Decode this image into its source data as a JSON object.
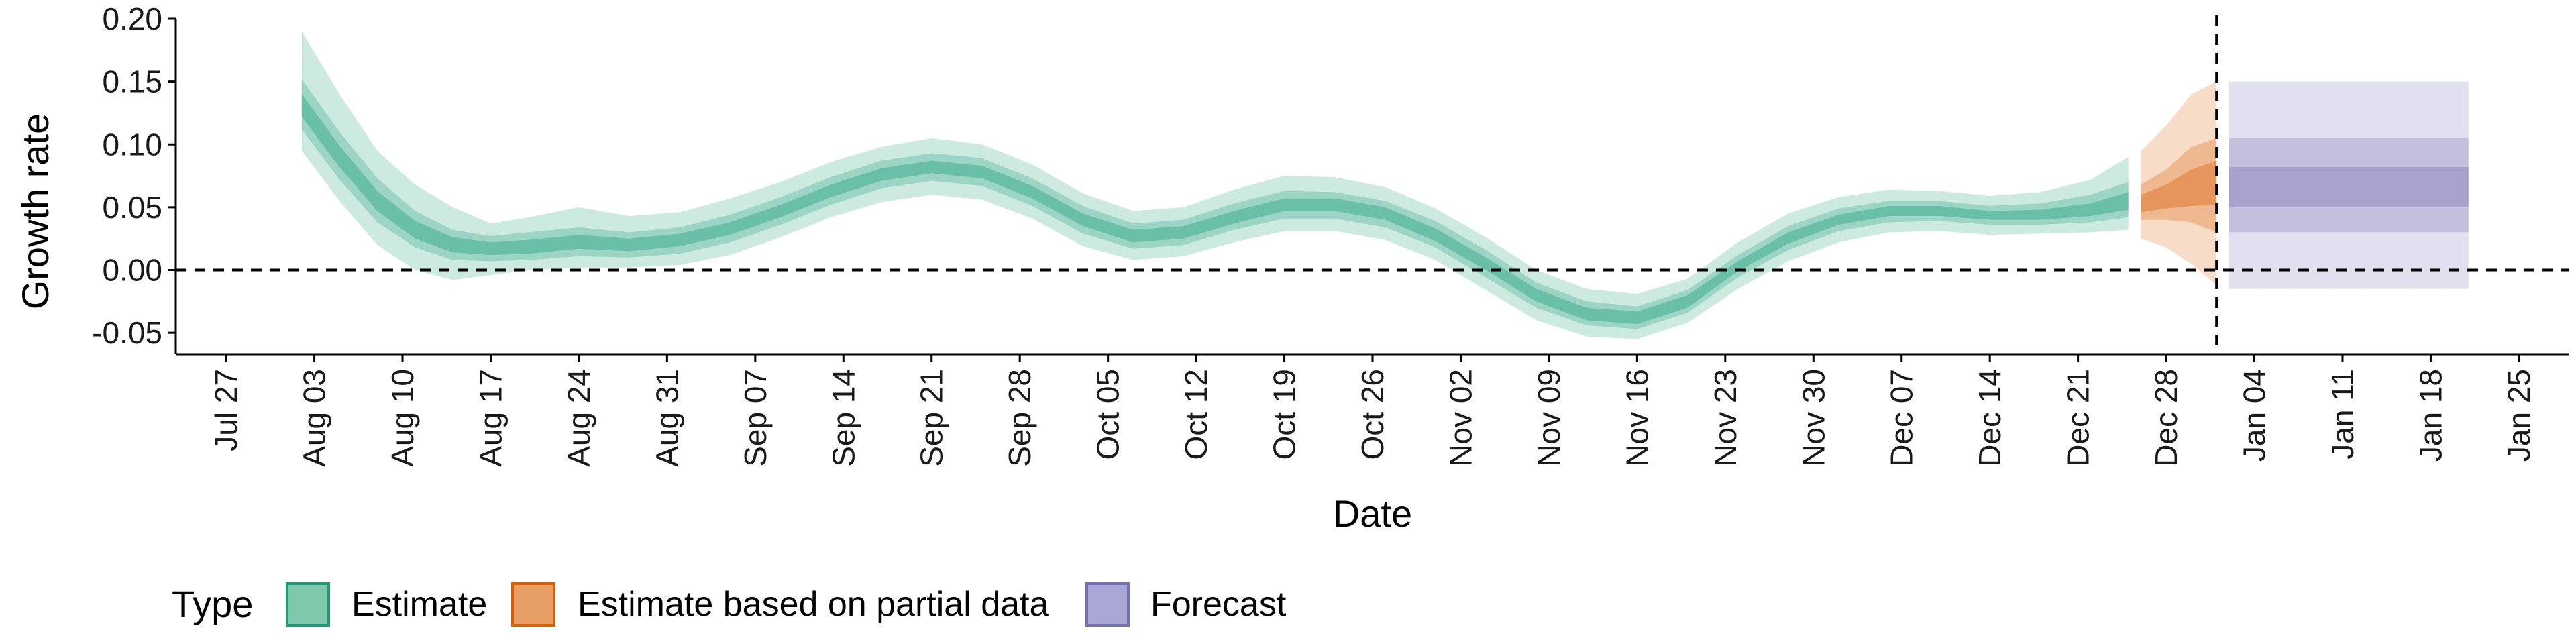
{
  "chart_data": {
    "type": "area",
    "xlabel": "Date",
    "ylabel": "Growth rate",
    "ylim": [
      -0.067,
      0.2
    ],
    "xlim": [
      "2020-07-23",
      "2021-01-29"
    ],
    "y_ticks": [
      "0.20",
      "0.15",
      "0.10",
      "0.05",
      "0.00",
      "-0.05"
    ],
    "y_tick_values": [
      0.2,
      0.15,
      0.1,
      0.05,
      0.0,
      -0.05
    ],
    "x_ticks": [
      "Jul 27",
      "Aug 03",
      "Aug 10",
      "Aug 17",
      "Aug 24",
      "Aug 31",
      "Sep 07",
      "Sep 14",
      "Sep 21",
      "Sep 28",
      "Oct 05",
      "Oct 12",
      "Oct 19",
      "Oct 26",
      "Nov 02",
      "Nov 09",
      "Nov 16",
      "Nov 23",
      "Nov 30",
      "Dec 07",
      "Dec 14",
      "Dec 21",
      "Dec 28",
      "Jan 04",
      "Jan 11",
      "Jan 18",
      "Jan 25"
    ],
    "x_tick_dates": [
      "2020-07-27",
      "2020-08-03",
      "2020-08-10",
      "2020-08-17",
      "2020-08-24",
      "2020-08-31",
      "2020-09-07",
      "2020-09-14",
      "2020-09-21",
      "2020-09-28",
      "2020-10-05",
      "2020-10-12",
      "2020-10-19",
      "2020-10-26",
      "2020-11-02",
      "2020-11-09",
      "2020-11-16",
      "2020-11-23",
      "2020-11-30",
      "2020-12-07",
      "2020-12-14",
      "2020-12-21",
      "2020-12-28",
      "2021-01-04",
      "2021-01-11",
      "2021-01-18",
      "2021-01-25"
    ],
    "reference_lines": {
      "horizontal_y": 0.0,
      "vertical_date": "2021-01-01"
    },
    "grid": false,
    "legend_position": "bottom",
    "legend_title": "Type",
    "series": [
      {
        "name": "Estimate",
        "color": "#1b9e77",
        "bands": [
          "90%",
          "50%",
          "20%"
        ],
        "points": [
          {
            "date": "2020-08-02",
            "median": 0.13,
            "lo90": 0.095,
            "hi90": 0.19,
            "lo50": 0.112,
            "hi50": 0.152,
            "lo20": 0.122,
            "hi20": 0.14
          },
          {
            "date": "2020-08-05",
            "median": 0.09,
            "lo90": 0.055,
            "hi90": 0.14,
            "lo50": 0.072,
            "hi50": 0.11,
            "lo20": 0.082,
            "hi20": 0.099
          },
          {
            "date": "2020-08-08",
            "median": 0.055,
            "lo90": 0.02,
            "hi90": 0.095,
            "lo50": 0.038,
            "hi50": 0.073,
            "lo20": 0.047,
            "hi20": 0.063
          },
          {
            "date": "2020-08-11",
            "median": 0.032,
            "lo90": 0.0,
            "hi90": 0.068,
            "lo50": 0.018,
            "hi50": 0.047,
            "lo20": 0.025,
            "hi20": 0.039
          },
          {
            "date": "2020-08-14",
            "median": 0.02,
            "lo90": -0.008,
            "hi90": 0.05,
            "lo50": 0.008,
            "hi50": 0.032,
            "lo20": 0.014,
            "hi20": 0.026
          },
          {
            "date": "2020-08-17",
            "median": 0.017,
            "lo90": -0.004,
            "hi90": 0.037,
            "lo50": 0.007,
            "hi50": 0.027,
            "lo20": 0.012,
            "hi20": 0.022
          },
          {
            "date": "2020-08-20",
            "median": 0.018,
            "lo90": 0.0,
            "hi90": 0.042,
            "lo50": 0.008,
            "hi50": 0.03,
            "lo20": 0.013,
            "hi20": 0.024
          },
          {
            "date": "2020-08-24",
            "median": 0.022,
            "lo90": 0.002,
            "hi90": 0.05,
            "lo50": 0.011,
            "hi50": 0.034,
            "lo20": 0.017,
            "hi20": 0.028
          },
          {
            "date": "2020-08-28",
            "median": 0.02,
            "lo90": 0.002,
            "hi90": 0.043,
            "lo50": 0.01,
            "hi50": 0.03,
            "lo20": 0.015,
            "hi20": 0.025
          },
          {
            "date": "2020-09-01",
            "median": 0.024,
            "lo90": 0.004,
            "hi90": 0.046,
            "lo50": 0.013,
            "hi50": 0.034,
            "lo20": 0.019,
            "hi20": 0.029
          },
          {
            "date": "2020-09-05",
            "median": 0.033,
            "lo90": 0.012,
            "hi90": 0.057,
            "lo50": 0.022,
            "hi50": 0.044,
            "lo20": 0.028,
            "hi20": 0.038
          },
          {
            "date": "2020-09-09",
            "median": 0.047,
            "lo90": 0.026,
            "hi90": 0.07,
            "lo50": 0.036,
            "hi50": 0.058,
            "lo20": 0.042,
            "hi20": 0.052
          },
          {
            "date": "2020-09-13",
            "median": 0.063,
            "lo90": 0.042,
            "hi90": 0.086,
            "lo50": 0.052,
            "hi50": 0.074,
            "lo20": 0.058,
            "hi20": 0.068
          },
          {
            "date": "2020-09-17",
            "median": 0.076,
            "lo90": 0.054,
            "hi90": 0.098,
            "lo50": 0.065,
            "hi50": 0.087,
            "lo20": 0.071,
            "hi20": 0.081
          },
          {
            "date": "2020-09-21",
            "median": 0.082,
            "lo90": 0.06,
            "hi90": 0.105,
            "lo50": 0.071,
            "hi50": 0.093,
            "lo20": 0.077,
            "hi20": 0.087
          },
          {
            "date": "2020-09-25",
            "median": 0.078,
            "lo90": 0.056,
            "hi90": 0.1,
            "lo50": 0.067,
            "hi50": 0.089,
            "lo20": 0.073,
            "hi20": 0.083
          },
          {
            "date": "2020-09-29",
            "median": 0.062,
            "lo90": 0.041,
            "hi90": 0.084,
            "lo50": 0.051,
            "hi50": 0.073,
            "lo20": 0.057,
            "hi20": 0.067
          },
          {
            "date": "2020-10-03",
            "median": 0.04,
            "lo90": 0.019,
            "hi90": 0.061,
            "lo50": 0.029,
            "hi50": 0.051,
            "lo20": 0.035,
            "hi20": 0.045
          },
          {
            "date": "2020-10-07",
            "median": 0.027,
            "lo90": 0.008,
            "hi90": 0.047,
            "lo50": 0.017,
            "hi50": 0.037,
            "lo20": 0.022,
            "hi20": 0.032
          },
          {
            "date": "2020-10-11",
            "median": 0.03,
            "lo90": 0.011,
            "hi90": 0.05,
            "lo50": 0.02,
            "hi50": 0.04,
            "lo20": 0.025,
            "hi20": 0.035
          },
          {
            "date": "2020-10-15",
            "median": 0.042,
            "lo90": 0.022,
            "hi90": 0.064,
            "lo50": 0.032,
            "hi50": 0.053,
            "lo20": 0.037,
            "hi20": 0.047
          },
          {
            "date": "2020-10-19",
            "median": 0.052,
            "lo90": 0.031,
            "hi90": 0.075,
            "lo50": 0.041,
            "hi50": 0.063,
            "lo20": 0.047,
            "hi20": 0.057
          },
          {
            "date": "2020-10-23",
            "median": 0.052,
            "lo90": 0.031,
            "hi90": 0.074,
            "lo50": 0.041,
            "hi50": 0.062,
            "lo20": 0.047,
            "hi20": 0.057
          },
          {
            "date": "2020-10-27",
            "median": 0.045,
            "lo90": 0.024,
            "hi90": 0.066,
            "lo50": 0.034,
            "hi50": 0.055,
            "lo20": 0.04,
            "hi20": 0.05
          },
          {
            "date": "2020-10-31",
            "median": 0.028,
            "lo90": 0.008,
            "hi90": 0.049,
            "lo50": 0.018,
            "hi50": 0.039,
            "lo20": 0.023,
            "hi20": 0.033
          },
          {
            "date": "2020-11-04",
            "median": 0.005,
            "lo90": -0.016,
            "hi90": 0.026,
            "lo50": -0.006,
            "hi50": 0.016,
            "lo20": 0.0,
            "hi20": 0.01
          },
          {
            "date": "2020-11-08",
            "median": -0.02,
            "lo90": -0.04,
            "hi90": 0.0,
            "lo50": -0.03,
            "hi50": -0.01,
            "lo20": -0.025,
            "hi20": -0.015
          },
          {
            "date": "2020-11-12",
            "median": -0.035,
            "lo90": -0.053,
            "hi90": -0.015,
            "lo50": -0.044,
            "hi50": -0.025,
            "lo20": -0.04,
            "hi20": -0.03
          },
          {
            "date": "2020-11-16",
            "median": -0.038,
            "lo90": -0.055,
            "hi90": -0.019,
            "lo50": -0.047,
            "hi50": -0.029,
            "lo20": -0.043,
            "hi20": -0.033
          },
          {
            "date": "2020-11-20",
            "median": -0.025,
            "lo90": -0.042,
            "hi90": -0.007,
            "lo50": -0.034,
            "hi50": -0.016,
            "lo20": -0.03,
            "hi20": -0.02
          },
          {
            "date": "2020-11-24",
            "median": 0.003,
            "lo90": -0.015,
            "hi90": 0.022,
            "lo50": -0.006,
            "hi50": 0.012,
            "lo20": -0.001,
            "hi20": 0.007
          },
          {
            "date": "2020-11-28",
            "median": 0.025,
            "lo90": 0.007,
            "hi90": 0.045,
            "lo50": 0.016,
            "hi50": 0.035,
            "lo20": 0.021,
            "hi20": 0.03
          },
          {
            "date": "2020-12-02",
            "median": 0.04,
            "lo90": 0.022,
            "hi90": 0.058,
            "lo50": 0.031,
            "hi50": 0.049,
            "lo20": 0.036,
            "hi20": 0.044
          },
          {
            "date": "2020-12-06",
            "median": 0.047,
            "lo90": 0.03,
            "hi90": 0.064,
            "lo50": 0.038,
            "hi50": 0.055,
            "lo20": 0.043,
            "hi20": 0.051
          },
          {
            "date": "2020-12-10",
            "median": 0.047,
            "lo90": 0.031,
            "hi90": 0.063,
            "lo50": 0.039,
            "hi50": 0.055,
            "lo20": 0.043,
            "hi20": 0.051
          },
          {
            "date": "2020-12-14",
            "median": 0.043,
            "lo90": 0.028,
            "hi90": 0.059,
            "lo50": 0.036,
            "hi50": 0.051,
            "lo20": 0.04,
            "hi20": 0.047
          },
          {
            "date": "2020-12-18",
            "median": 0.044,
            "lo90": 0.029,
            "hi90": 0.062,
            "lo50": 0.036,
            "hi50": 0.053,
            "lo20": 0.04,
            "hi20": 0.048
          },
          {
            "date": "2020-12-22",
            "median": 0.048,
            "lo90": 0.03,
            "hi90": 0.072,
            "lo50": 0.038,
            "hi50": 0.06,
            "lo20": 0.043,
            "hi20": 0.053
          },
          {
            "date": "2020-12-25",
            "median": 0.055,
            "lo90": 0.032,
            "hi90": 0.09,
            "lo50": 0.042,
            "hi50": 0.07,
            "lo20": 0.048,
            "hi20": 0.062
          }
        ]
      },
      {
        "name": "Estimate based on partial data",
        "color": "#d95f02",
        "bands": [
          "90%",
          "50%",
          "20%"
        ],
        "points": [
          {
            "date": "2020-12-26",
            "median": 0.052,
            "lo90": 0.025,
            "hi90": 0.095,
            "lo50": 0.04,
            "hi50": 0.068,
            "lo20": 0.046,
            "hi20": 0.06
          },
          {
            "date": "2020-12-28",
            "median": 0.058,
            "lo90": 0.018,
            "hi90": 0.115,
            "lo50": 0.04,
            "hi50": 0.08,
            "lo20": 0.049,
            "hi20": 0.068
          },
          {
            "date": "2020-12-30",
            "median": 0.065,
            "lo90": 0.005,
            "hi90": 0.14,
            "lo50": 0.038,
            "hi50": 0.098,
            "lo20": 0.051,
            "hi20": 0.08
          },
          {
            "date": "2021-01-01",
            "median": 0.07,
            "lo90": -0.012,
            "hi90": 0.15,
            "lo50": 0.03,
            "hi50": 0.105,
            "lo20": 0.052,
            "hi20": 0.087
          }
        ]
      },
      {
        "name": "Forecast",
        "color": "#7570b3",
        "bands": [
          "90%",
          "50%",
          "20%"
        ],
        "points": [
          {
            "date": "2021-01-02",
            "lo90": -0.015,
            "hi90": 0.15,
            "lo50": 0.03,
            "hi50": 0.105,
            "lo20": 0.05,
            "hi20": 0.082
          },
          {
            "date": "2021-01-21",
            "lo90": -0.015,
            "hi90": 0.15,
            "lo50": 0.03,
            "hi50": 0.105,
            "lo20": 0.05,
            "hi20": 0.082
          }
        ]
      }
    ]
  },
  "legend": {
    "title": "Type",
    "items": [
      {
        "label": "Estimate",
        "fill": "#7fc8ac",
        "stroke": "#1b9e77"
      },
      {
        "label": "Estimate based on partial data",
        "fill": "#e89f66",
        "stroke": "#d95f02"
      },
      {
        "label": "Forecast",
        "fill": "#aaa6d6",
        "stroke": "#7570b3"
      }
    ]
  }
}
